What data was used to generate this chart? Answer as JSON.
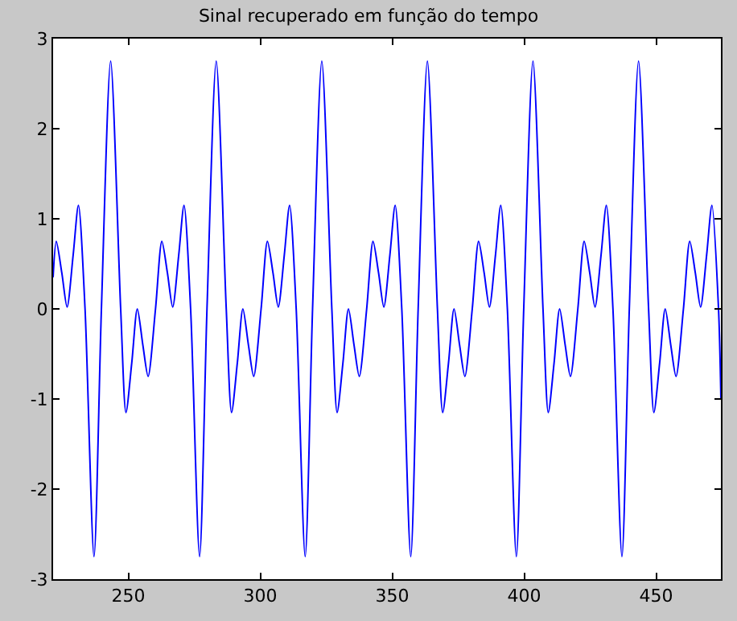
{
  "chart_data": {
    "type": "line",
    "title": "Sinal recuperado em função do tempo",
    "x": [
      221.5,
      222.7,
      224.8,
      226.8,
      229.1,
      231.1,
      233.6,
      237,
      239.8,
      243.3,
      247.1,
      249.1,
      251.3,
      253.4,
      255.5,
      257.5,
      260.3,
      262.7,
      264.8,
      266.8,
      269.1,
      271.1,
      273.6,
      277,
      279.8,
      283.3,
      287.1,
      289.1,
      291.3,
      293.4,
      295.5,
      297.5,
      300.3,
      302.7,
      304.8,
      306.8,
      309.1,
      311.1,
      313.6,
      317,
      319.8,
      323.3,
      327.1,
      329.1,
      331.3,
      333.4,
      335.5,
      337.5,
      340.3,
      342.7,
      344.8,
      346.8,
      349.1,
      351.1,
      353.6,
      357,
      359.8,
      363.3,
      367.1,
      369.1,
      371.3,
      373.4,
      375.5,
      377.5,
      380.3,
      382.7,
      384.8,
      386.8,
      389.1,
      391.1,
      393.6,
      397,
      399.8,
      403.3,
      407.1,
      409.1,
      411.3,
      413.4,
      415.5,
      417.5,
      420.3,
      422.7,
      424.8,
      426.8,
      429.1,
      431.1,
      433.6,
      437,
      439.8,
      443.3,
      447.1,
      449.1,
      451.3,
      453.4,
      455.5,
      457.5,
      460.3,
      462.7,
      464.8,
      466.8,
      469.1,
      471.1,
      473.6,
      474.5
    ],
    "series": [
      {
        "color": "#0000ff",
        "values": [
          0.35,
          0.75,
          0.4,
          0.02,
          0.6,
          1.15,
          0,
          -2.75,
          0,
          2.75,
          0,
          -1.15,
          -0.6,
          0,
          -0.4,
          -0.75,
          0,
          0.75,
          0.4,
          0.02,
          0.6,
          1.15,
          0,
          -2.75,
          0,
          2.75,
          0,
          -1.15,
          -0.6,
          0,
          -0.4,
          -0.75,
          0,
          0.75,
          0.4,
          0.02,
          0.6,
          1.15,
          0,
          -2.75,
          0,
          2.75,
          0,
          -1.15,
          -0.6,
          0,
          -0.4,
          -0.75,
          0,
          0.75,
          0.4,
          0.02,
          0.6,
          1.15,
          0,
          -2.75,
          0,
          2.75,
          0,
          -1.15,
          -0.6,
          0,
          -0.4,
          -0.75,
          0,
          0.75,
          0.4,
          0.02,
          0.6,
          1.15,
          0,
          -2.75,
          0,
          2.75,
          0,
          -1.15,
          -0.6,
          0,
          -0.4,
          -0.75,
          0,
          0.75,
          0.4,
          0.02,
          0.6,
          1.15,
          0,
          -2.75,
          0,
          2.75,
          0,
          -1.15,
          -0.6,
          0,
          -0.4,
          -0.75,
          0,
          0.75,
          0.4,
          0.02,
          0.6,
          1.15,
          0,
          -1.0
        ]
      }
    ],
    "xlim": [
      221.5,
      474.5
    ],
    "xticks": [
      250,
      300,
      350,
      400,
      450
    ],
    "ylim": [
      -3,
      3
    ],
    "yticks": [
      -3,
      -2,
      -1,
      0,
      1,
      2,
      3
    ],
    "marker": "none",
    "line_style": "solid"
  }
}
